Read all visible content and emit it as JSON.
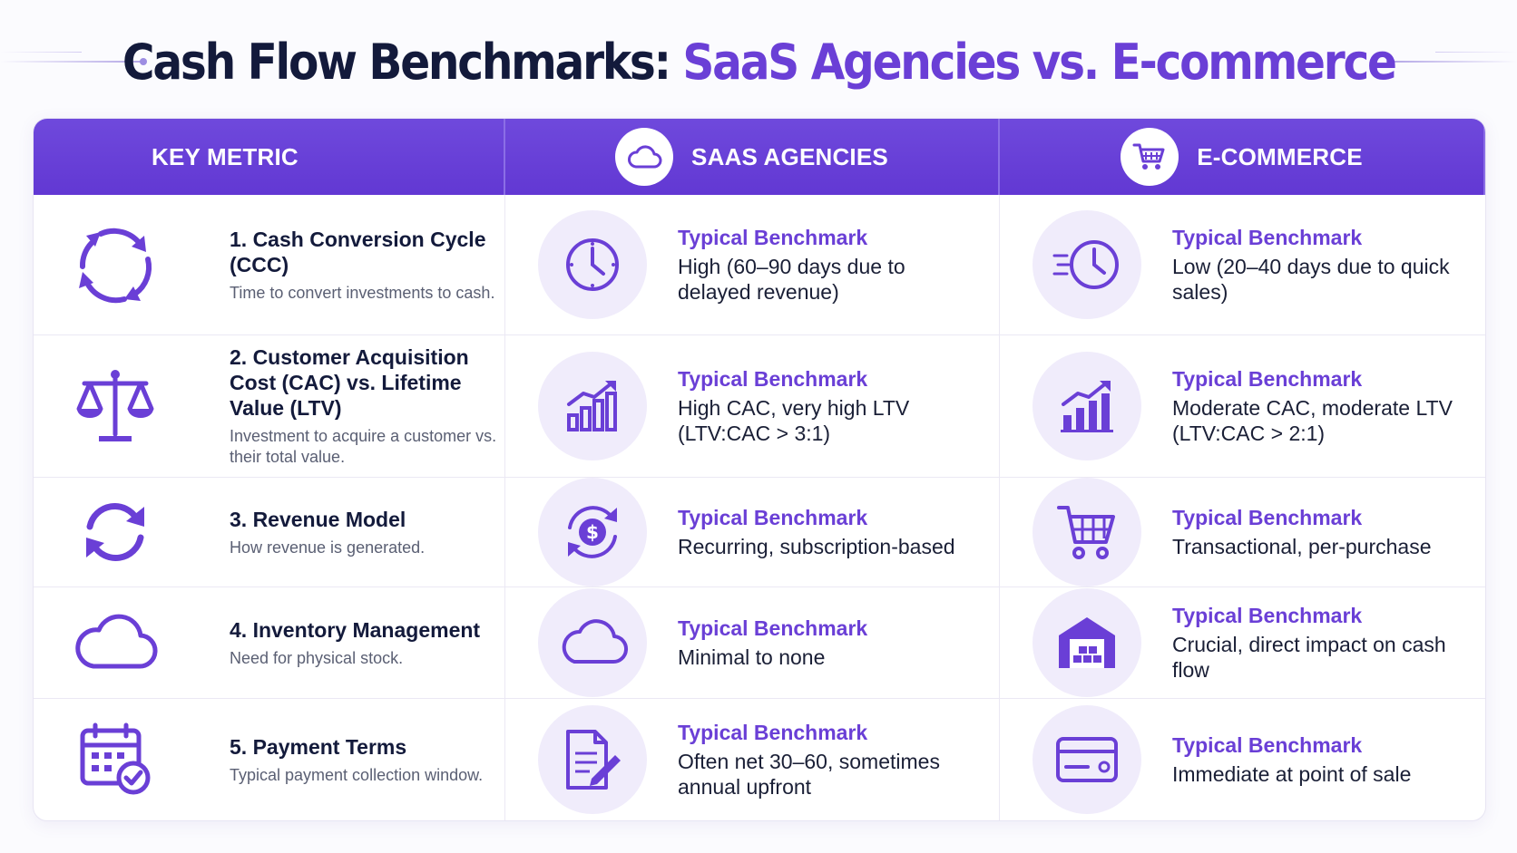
{
  "title": {
    "part1": "Cash Flow Benchmarks: ",
    "part2": "SaaS Agencies vs. E-commerce"
  },
  "columns": {
    "metric": "KEY METRIC",
    "saas": "SAAS AGENCIES",
    "ecommerce": "E-COMMERCE"
  },
  "benchmark_label": "Typical Benchmark",
  "rows": [
    {
      "title": "1. Cash Conversion Cycle (CCC)",
      "desc": "Time to convert investments to cash.",
      "saas": "High (60–90 days due to delayed revenue)",
      "ecommerce": "Low (20–40 days due to quick sales)",
      "icons": {
        "metric": "cycle-icon",
        "saas": "clock-icon",
        "ecommerce": "fast-clock-icon"
      }
    },
    {
      "title": "2. Customer Acquisition Cost (CAC) vs. Lifetime Value (LTV)",
      "desc": "Investment to acquire a customer vs. their total value.",
      "saas": "High CAC, very high LTV (LTV:CAC > 3:1)",
      "ecommerce": "Moderate CAC, moderate LTV (LTV:CAC > 2:1)",
      "icons": {
        "metric": "scale-icon",
        "saas": "growth-chart-icon",
        "ecommerce": "growth-chart-icon"
      }
    },
    {
      "title": "3. Revenue Model",
      "desc": "How revenue is generated.",
      "saas": "Recurring, subscription-based",
      "ecommerce": "Transactional, per-purchase",
      "icons": {
        "metric": "refresh-icon",
        "saas": "recurring-dollar-icon",
        "ecommerce": "shopping-cart-icon"
      }
    },
    {
      "title": "4. Inventory Management",
      "desc": "Need for physical stock.",
      "saas": "Minimal to none",
      "ecommerce": "Crucial, direct impact on cash flow",
      "icons": {
        "metric": "cloud-icon",
        "saas": "cloud-icon",
        "ecommerce": "warehouse-icon"
      }
    },
    {
      "title": "5. Payment Terms",
      "desc": "Typical payment collection window.",
      "saas": "Often net 30–60, sometimes annual upfront",
      "ecommerce": "Immediate at point of sale",
      "icons": {
        "metric": "calendar-check-icon",
        "saas": "invoice-pen-icon",
        "ecommerce": "credit-card-icon"
      }
    }
  ],
  "colors": {
    "accent": "#6a3fd6",
    "header_bg": "#6840d8",
    "title_dark": "#131a3b"
  }
}
